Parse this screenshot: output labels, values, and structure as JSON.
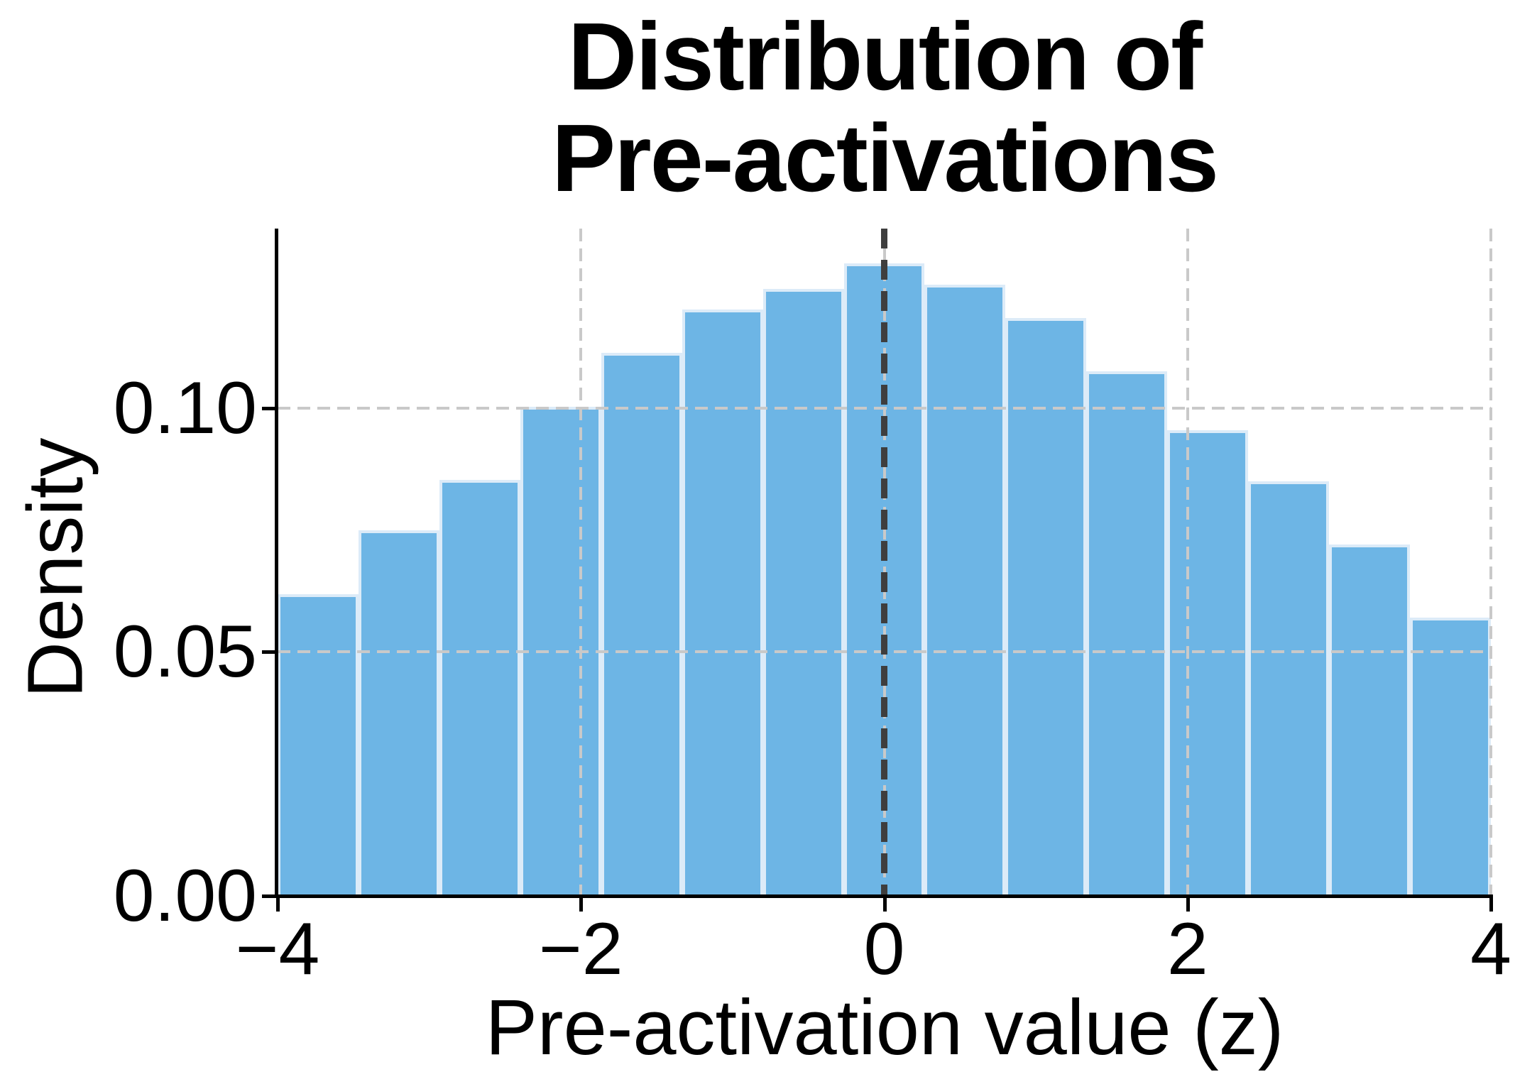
{
  "page": {
    "background": "#ffffff"
  },
  "chart_data": {
    "type": "bar",
    "subtype": "histogram",
    "title": "Distribution of Pre-activations",
    "title_lines": [
      "Distribution of",
      "Pre-activations"
    ],
    "xlabel": "Pre-activation value (z)",
    "ylabel": "Density",
    "xlim": [
      -4,
      4
    ],
    "ylim": [
      0,
      0.1368
    ],
    "x_ticks": [
      {
        "value": -4,
        "label": "−4"
      },
      {
        "value": -2,
        "label": "−2"
      },
      {
        "value": 0,
        "label": "0"
      },
      {
        "value": 2,
        "label": "2"
      },
      {
        "value": 4,
        "label": "4"
      }
    ],
    "y_ticks": [
      {
        "value": 0.0,
        "label": "0.00"
      },
      {
        "value": 0.05,
        "label": "0.05"
      },
      {
        "value": 0.1,
        "label": "0.10"
      }
    ],
    "bin_edges": [
      -4,
      -3.4667,
      -2.9333,
      -2.4,
      -1.8667,
      -1.3333,
      -0.8,
      -0.2667,
      0.2667,
      0.8,
      1.3333,
      1.8667,
      2.4,
      2.9333,
      3.4667,
      4
    ],
    "values": [
      0.0619,
      0.075,
      0.0853,
      0.1003,
      0.1113,
      0.1202,
      0.1245,
      0.1296,
      0.1253,
      0.1184,
      0.1076,
      0.0955,
      0.085,
      0.072,
      0.0571
    ],
    "reference_line": {
      "x": 0,
      "orientation": "vertical",
      "style": "dashed",
      "color": "#3e3e3e"
    },
    "grid": {
      "horizontal_at": [
        0.05,
        0.1
      ],
      "vertical_at": [
        -2,
        0,
        2,
        4
      ],
      "style": "dashed",
      "color": "#c9c9c9",
      "above_bars": true
    },
    "bar_color": "#6db5e5",
    "bar_edge_color": "#dcebf8",
    "axis_color": "#000000",
    "text_color": "#000000",
    "legend": null
  }
}
